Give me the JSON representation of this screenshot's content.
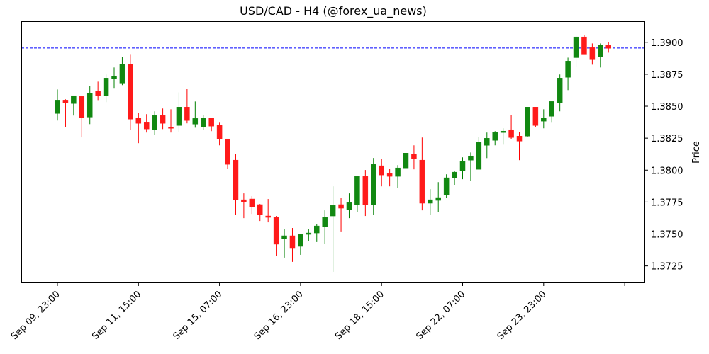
{
  "chart_data": {
    "type": "candlestick",
    "title": "USD/CAD - H4 (@forex_ua_news)",
    "xlabel": "",
    "ylabel": "Price",
    "ylim": [
      1.37115,
      1.39165
    ],
    "y_ticks": [
      "1.3725",
      "1.3750",
      "1.3775",
      "1.3800",
      "1.3825",
      "1.3850",
      "1.3875",
      "1.3900"
    ],
    "x_ticks": [
      {
        "label": "Sep 09, 23:00",
        "index": 0
      },
      {
        "label": "Sep 11, 15:00",
        "index": 10
      },
      {
        "label": "Sep 15, 07:00",
        "index": 20
      },
      {
        "label": "Sep 16, 23:00",
        "index": 30
      },
      {
        "label": "Sep 18, 15:00",
        "index": 40
      },
      {
        "label": "Sep 22, 07:00",
        "index": 50
      },
      {
        "label": "Sep 23, 23:00",
        "index": 60
      },
      {
        "label": "",
        "index": 70
      }
    ],
    "reference_line": {
      "value": 1.38955,
      "style": "dashed",
      "color": "#0000ff"
    },
    "colors": {
      "up": "#008000",
      "down": "#ff0000",
      "frame": "#000000"
    },
    "candles": [
      {
        "o": 1.38443,
        "h": 1.38631,
        "l": 1.38388,
        "c": 1.38548
      },
      {
        "o": 1.38548,
        "h": 1.38554,
        "l": 1.38338,
        "c": 1.38526
      },
      {
        "o": 1.38521,
        "h": 1.38581,
        "l": 1.38427,
        "c": 1.38582
      },
      {
        "o": 1.38576,
        "h": 1.38576,
        "l": 1.38256,
        "c": 1.3841
      },
      {
        "o": 1.38415,
        "h": 1.38659,
        "l": 1.3836,
        "c": 1.38604
      },
      {
        "o": 1.38615,
        "h": 1.38692,
        "l": 1.38548,
        "c": 1.38582
      },
      {
        "o": 1.38582,
        "h": 1.38748,
        "l": 1.38532,
        "c": 1.3872
      },
      {
        "o": 1.38715,
        "h": 1.38803,
        "l": 1.38643,
        "c": 1.38737
      },
      {
        "o": 1.38681,
        "h": 1.38886,
        "l": 1.38665,
        "c": 1.38831
      },
      {
        "o": 1.38831,
        "h": 1.38908,
        "l": 1.38316,
        "c": 1.38399
      },
      {
        "o": 1.3841,
        "h": 1.38449,
        "l": 1.38211,
        "c": 1.38366
      },
      {
        "o": 1.38371,
        "h": 1.38438,
        "l": 1.38294,
        "c": 1.38322
      },
      {
        "o": 1.38316,
        "h": 1.3846,
        "l": 1.38277,
        "c": 1.38427
      },
      {
        "o": 1.38427,
        "h": 1.38482,
        "l": 1.38321,
        "c": 1.38366
      },
      {
        "o": 1.38338,
        "h": 1.38476,
        "l": 1.38294,
        "c": 1.38327
      },
      {
        "o": 1.38349,
        "h": 1.38609,
        "l": 1.38299,
        "c": 1.38493
      },
      {
        "o": 1.38493,
        "h": 1.38637,
        "l": 1.38366,
        "c": 1.38388
      },
      {
        "o": 1.3836,
        "h": 1.38537,
        "l": 1.38332,
        "c": 1.38404
      },
      {
        "o": 1.38338,
        "h": 1.38432,
        "l": 1.38316,
        "c": 1.3841
      },
      {
        "o": 1.3841,
        "h": 1.3841,
        "l": 1.38305,
        "c": 1.38344
      },
      {
        "o": 1.38349,
        "h": 1.38371,
        "l": 1.38194,
        "c": 1.38244
      },
      {
        "o": 1.38244,
        "h": 1.38244,
        "l": 1.38012,
        "c": 1.38045
      },
      {
        "o": 1.38078,
        "h": 1.38127,
        "l": 1.37652,
        "c": 1.37768
      },
      {
        "o": 1.37768,
        "h": 1.37818,
        "l": 1.37624,
        "c": 1.37752
      },
      {
        "o": 1.37774,
        "h": 1.37796,
        "l": 1.37657,
        "c": 1.37713
      },
      {
        "o": 1.3773,
        "h": 1.37735,
        "l": 1.37602,
        "c": 1.37652
      },
      {
        "o": 1.37641,
        "h": 1.37774,
        "l": 1.37591,
        "c": 1.3763
      },
      {
        "o": 1.3763,
        "h": 1.37641,
        "l": 1.37331,
        "c": 1.3742
      },
      {
        "o": 1.37464,
        "h": 1.37536,
        "l": 1.37315,
        "c": 1.37486
      },
      {
        "o": 1.37486,
        "h": 1.37547,
        "l": 1.37282,
        "c": 1.37392
      },
      {
        "o": 1.37403,
        "h": 1.37497,
        "l": 1.37337,
        "c": 1.37497
      },
      {
        "o": 1.37497,
        "h": 1.37536,
        "l": 1.37442,
        "c": 1.37508
      },
      {
        "o": 1.37508,
        "h": 1.3758,
        "l": 1.37437,
        "c": 1.37563
      },
      {
        "o": 1.37558,
        "h": 1.37685,
        "l": 1.3742,
        "c": 1.3763
      },
      {
        "o": 1.37641,
        "h": 1.37873,
        "l": 1.37204,
        "c": 1.37724
      },
      {
        "o": 1.3773,
        "h": 1.37785,
        "l": 1.3752,
        "c": 1.37702
      },
      {
        "o": 1.3769,
        "h": 1.37818,
        "l": 1.37624,
        "c": 1.37746
      },
      {
        "o": 1.3773,
        "h": 1.37956,
        "l": 1.37674,
        "c": 1.37951
      },
      {
        "o": 1.37951,
        "h": 1.38001,
        "l": 1.37641,
        "c": 1.3773
      },
      {
        "o": 1.3773,
        "h": 1.38095,
        "l": 1.37652,
        "c": 1.38045
      },
      {
        "o": 1.38034,
        "h": 1.38089,
        "l": 1.37873,
        "c": 1.37962
      },
      {
        "o": 1.37973,
        "h": 1.38012,
        "l": 1.37873,
        "c": 1.37951
      },
      {
        "o": 1.37951,
        "h": 1.38039,
        "l": 1.37862,
        "c": 1.38017
      },
      {
        "o": 1.38017,
        "h": 1.38194,
        "l": 1.37934,
        "c": 1.38133
      },
      {
        "o": 1.38127,
        "h": 1.38194,
        "l": 1.38006,
        "c": 1.38089
      },
      {
        "o": 1.38078,
        "h": 1.38255,
        "l": 1.37685,
        "c": 1.37741
      },
      {
        "o": 1.37741,
        "h": 1.37851,
        "l": 1.37652,
        "c": 1.37768
      },
      {
        "o": 1.37763,
        "h": 1.37906,
        "l": 1.37674,
        "c": 1.37785
      },
      {
        "o": 1.37807,
        "h": 1.37967,
        "l": 1.37785,
        "c": 1.3794
      },
      {
        "o": 1.3794,
        "h": 1.37995,
        "l": 1.37884,
        "c": 1.37984
      },
      {
        "o": 1.37995,
        "h": 1.381,
        "l": 1.37929,
        "c": 1.38067
      },
      {
        "o": 1.38078,
        "h": 1.38138,
        "l": 1.37918,
        "c": 1.38111
      },
      {
        "o": 1.38006,
        "h": 1.3826,
        "l": 1.38034,
        "c": 1.38216
      },
      {
        "o": 1.38194,
        "h": 1.38294,
        "l": 1.38094,
        "c": 1.38249
      },
      {
        "o": 1.38233,
        "h": 1.38305,
        "l": 1.38194,
        "c": 1.38294
      },
      {
        "o": 1.38294,
        "h": 1.38327,
        "l": 1.38199,
        "c": 1.38305
      },
      {
        "o": 1.38316,
        "h": 1.38432,
        "l": 1.38244,
        "c": 1.38255
      },
      {
        "o": 1.38266,
        "h": 1.38299,
        "l": 1.38078,
        "c": 1.38227
      },
      {
        "o": 1.38266,
        "h": 1.38493,
        "l": 1.3826,
        "c": 1.38493
      },
      {
        "o": 1.38493,
        "h": 1.38493,
        "l": 1.38338,
        "c": 1.38349
      },
      {
        "o": 1.38383,
        "h": 1.38476,
        "l": 1.38327,
        "c": 1.3841
      },
      {
        "o": 1.38421,
        "h": 1.38532,
        "l": 1.38371,
        "c": 1.38537
      },
      {
        "o": 1.38526,
        "h": 1.38748,
        "l": 1.3846,
        "c": 1.3872
      },
      {
        "o": 1.38726,
        "h": 1.3888,
        "l": 1.38626,
        "c": 1.38853
      },
      {
        "o": 1.3888,
        "h": 1.39053,
        "l": 1.38803,
        "c": 1.39042
      },
      {
        "o": 1.39042,
        "h": 1.39059,
        "l": 1.38908,
        "c": 1.38908
      },
      {
        "o": 1.38958,
        "h": 1.38991,
        "l": 1.38825,
        "c": 1.38864
      },
      {
        "o": 1.38886,
        "h": 1.38991,
        "l": 1.38803,
        "c": 1.3898
      },
      {
        "o": 1.38975,
        "h": 1.39003,
        "l": 1.38919,
        "c": 1.38953
      }
    ]
  }
}
